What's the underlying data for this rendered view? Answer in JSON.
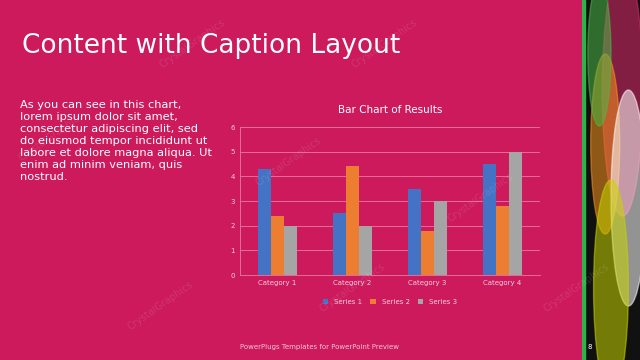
{
  "slide": {
    "title": "Content with Caption Layout",
    "caption": "As you can see in this chart, lorem ipsum dolor sit amet, consectetur adipiscing elit, sed do eiusmod tempor incididunt ut labore et dolore magna aliqua. Ut enim ad minim veniam, quis nostrud.",
    "footer": "PowerPlugs Templates for PowerPoint Preview",
    "page_number": "8",
    "watermark": "CrystalGraphics"
  },
  "chart_data": {
    "type": "bar",
    "title": "Bar Chart of Results",
    "categories": [
      "Category 1",
      "Category 2",
      "Category 3",
      "Category 4"
    ],
    "series": [
      {
        "name": "Series 1",
        "color": "#4472c4",
        "values": [
          4.3,
          2.5,
          3.5,
          4.5
        ]
      },
      {
        "name": "Series 2",
        "color": "#ed7d31",
        "values": [
          2.4,
          4.4,
          1.8,
          2.8
        ]
      },
      {
        "name": "Series 3",
        "color": "#a5a5a5",
        "values": [
          2.0,
          2.0,
          3.0,
          5.0
        ]
      }
    ],
    "ylim": [
      0,
      6
    ],
    "yticks": [
      0,
      1,
      2,
      3,
      4,
      5,
      6
    ],
    "grid": true,
    "legend": "bottom"
  }
}
